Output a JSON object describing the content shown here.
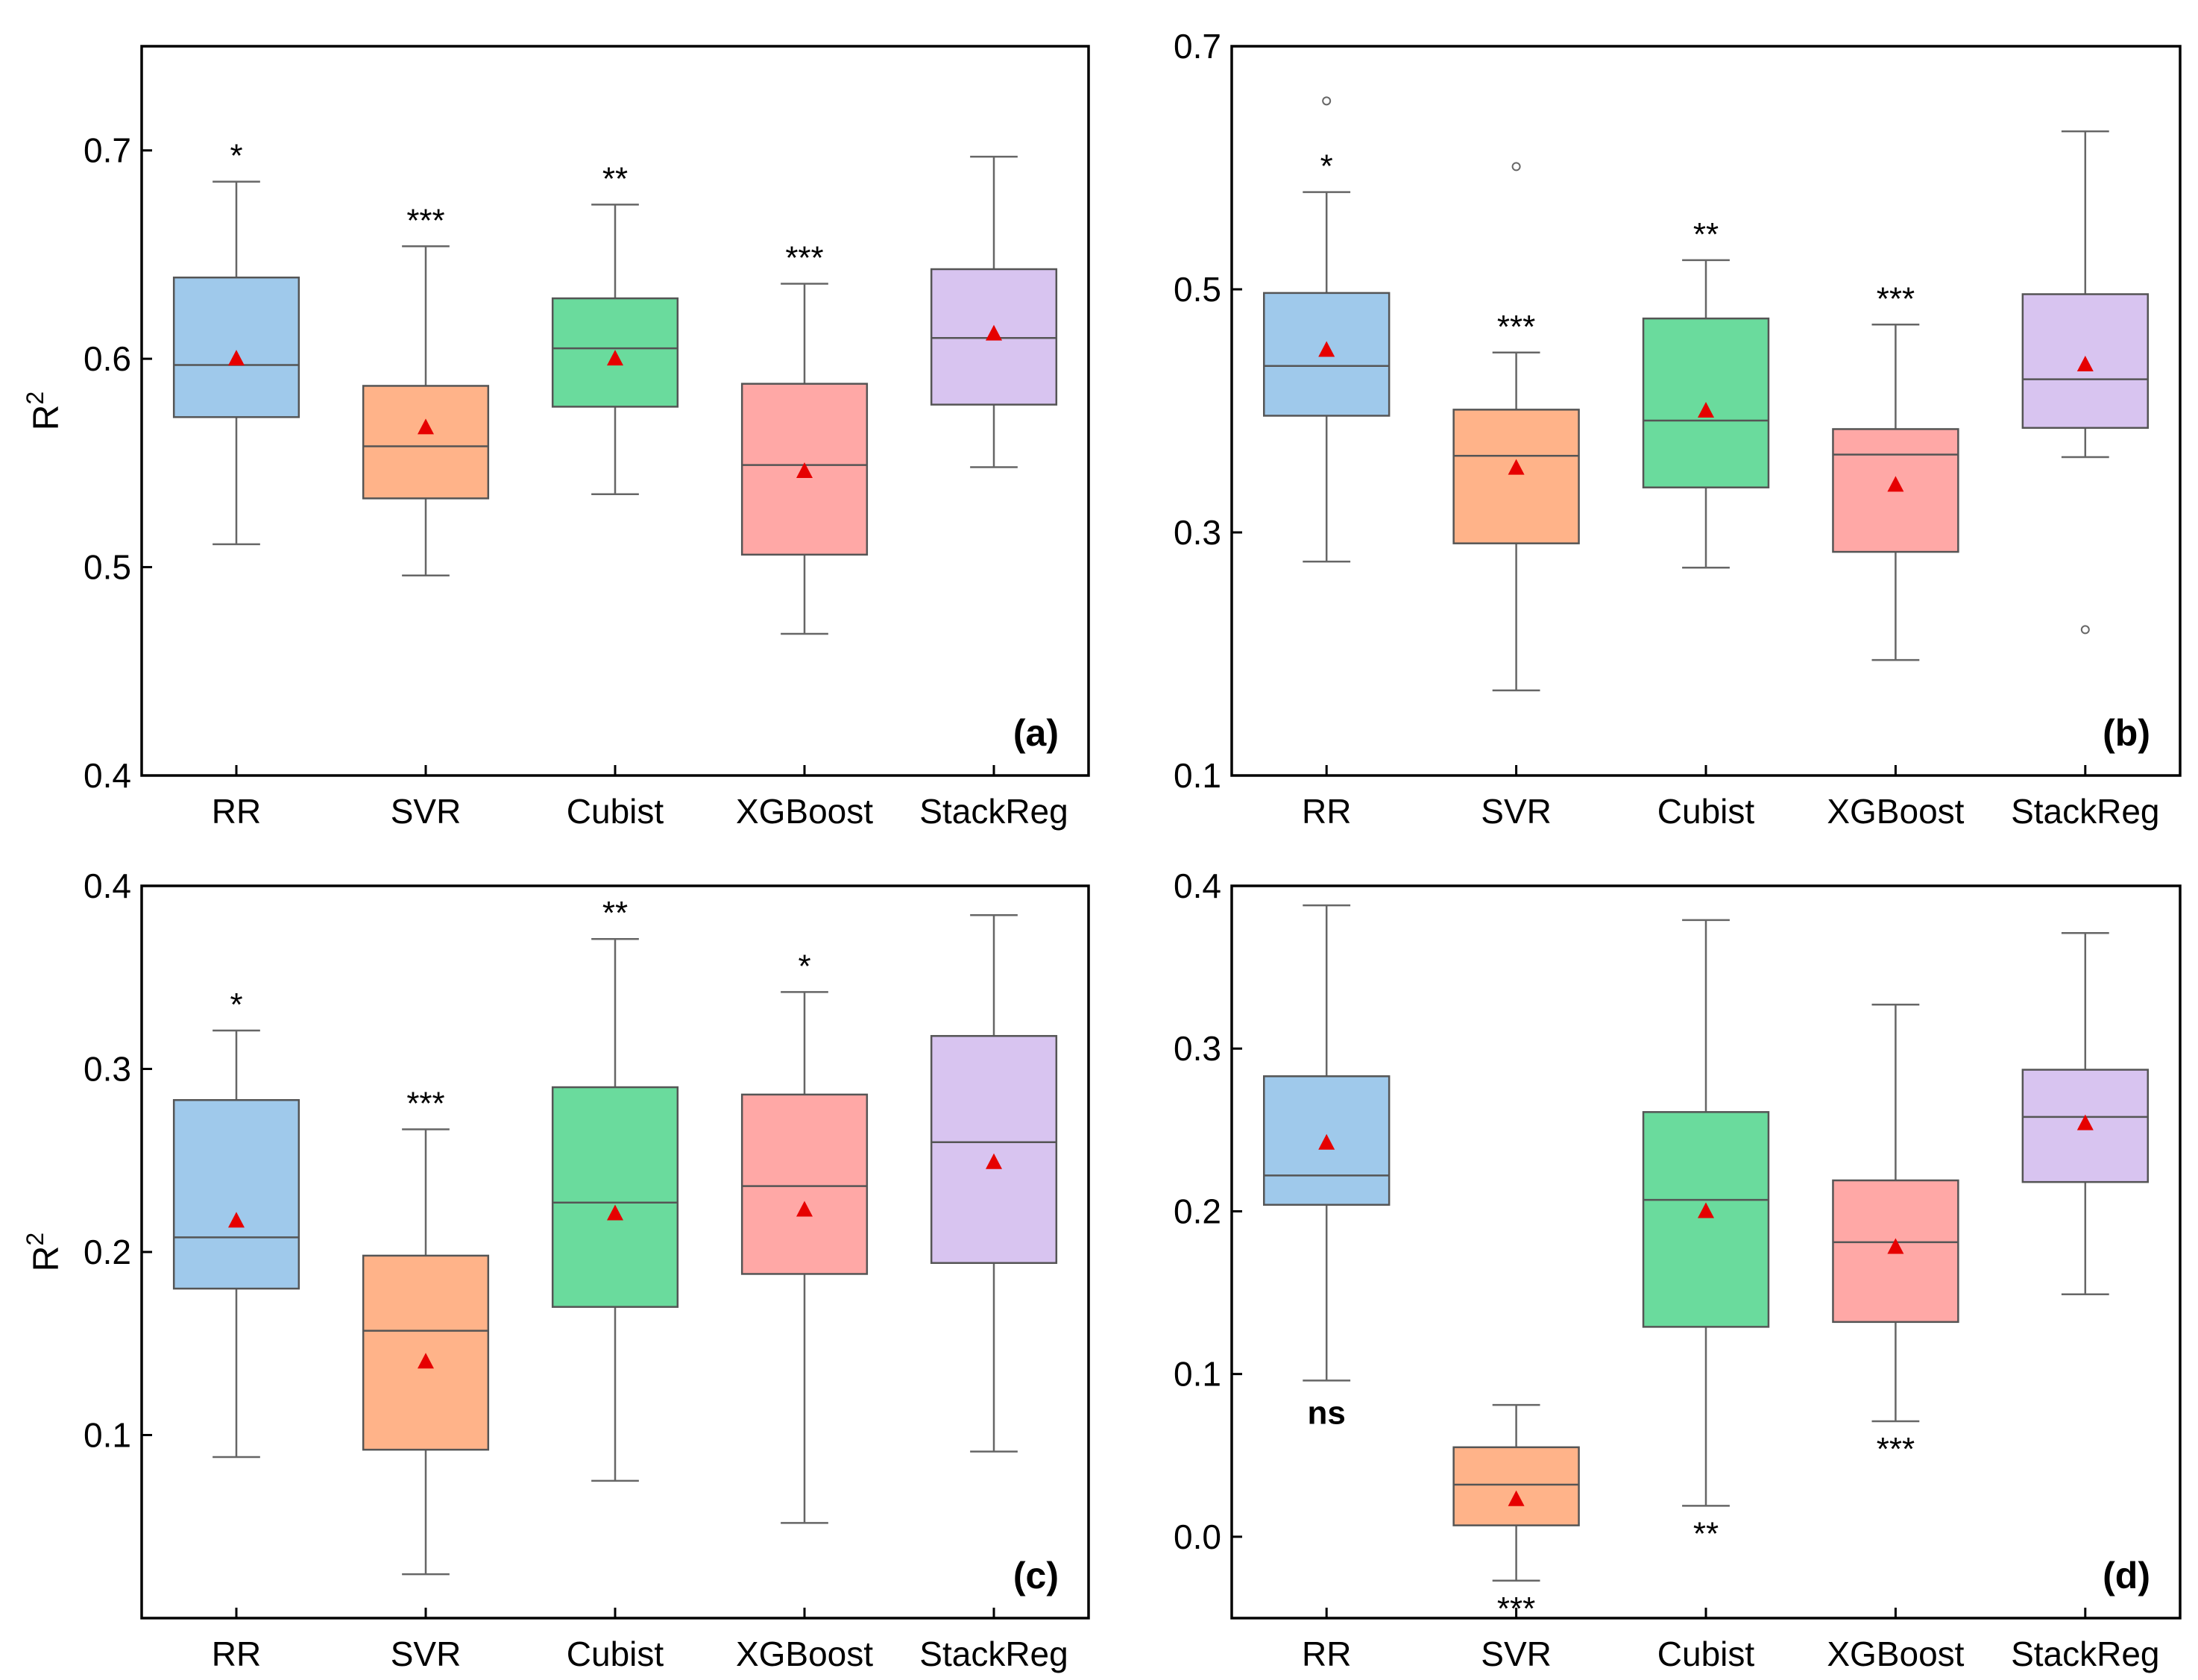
{
  "colors": {
    "RR": "#9fc9eb",
    "SVR": "#ffb389",
    "Cubist": "#6adb9d",
    "XGBoost": "#ffa8a6",
    "StackReg": "#d8c4f0",
    "mean_marker": "#e60000",
    "line": "#666666",
    "axis": "#000000"
  },
  "chart_data": [
    {
      "id": "a",
      "type": "box",
      "panel_label": "(a)",
      "ylabel": "R",
      "ylabel_sup": "2",
      "categories": [
        "RR",
        "SVR",
        "Cubist",
        "XGBoost",
        "StackReg"
      ],
      "ylim": [
        0.4,
        0.75
      ],
      "yticks": [
        0.4,
        0.5,
        0.6,
        0.7
      ],
      "ytick_labels": [
        "0.4",
        "0.5",
        "0.6",
        "0.7"
      ],
      "boxes": [
        {
          "whislo": 0.511,
          "q1": 0.572,
          "med": 0.597,
          "q3": 0.639,
          "whishi": 0.685,
          "mean": 0.6,
          "fliers": [],
          "sig": "*",
          "sig_pos": "above"
        },
        {
          "whislo": 0.496,
          "q1": 0.533,
          "med": 0.558,
          "q3": 0.587,
          "whishi": 0.654,
          "mean": 0.567,
          "fliers": [],
          "sig": "***",
          "sig_pos": "above"
        },
        {
          "whislo": 0.535,
          "q1": 0.577,
          "med": 0.605,
          "q3": 0.629,
          "whishi": 0.674,
          "mean": 0.6,
          "fliers": [],
          "sig": "**",
          "sig_pos": "above"
        },
        {
          "whislo": 0.468,
          "q1": 0.506,
          "med": 0.549,
          "q3": 0.588,
          "whishi": 0.636,
          "mean": 0.546,
          "fliers": [],
          "sig": "***",
          "sig_pos": "above"
        },
        {
          "whislo": 0.548,
          "q1": 0.578,
          "med": 0.61,
          "q3": 0.643,
          "whishi": 0.697,
          "mean": 0.612,
          "fliers": [],
          "sig": "",
          "sig_pos": "above"
        }
      ]
    },
    {
      "id": "b",
      "type": "box",
      "panel_label": "(b)",
      "ylabel": "",
      "ylabel_sup": "",
      "categories": [
        "RR",
        "SVR",
        "Cubist",
        "XGBoost",
        "StackReg"
      ],
      "ylim": [
        0.1,
        0.7
      ],
      "yticks": [
        0.1,
        0.3,
        0.5,
        0.7
      ],
      "ytick_labels": [
        "0.1",
        "0.3",
        "0.5",
        "0.7"
      ],
      "boxes": [
        {
          "whislo": 0.276,
          "q1": 0.396,
          "med": 0.437,
          "q3": 0.497,
          "whishi": 0.58,
          "mean": 0.45,
          "fliers": [
            0.655
          ],
          "sig": "*",
          "sig_pos": "above"
        },
        {
          "whislo": 0.17,
          "q1": 0.291,
          "med": 0.363,
          "q3": 0.401,
          "whishi": 0.448,
          "mean": 0.353,
          "fliers": [
            0.601
          ],
          "sig": "***",
          "sig_pos": "above"
        },
        {
          "whislo": 0.271,
          "q1": 0.337,
          "med": 0.392,
          "q3": 0.476,
          "whishi": 0.524,
          "mean": 0.4,
          "fliers": [],
          "sig": "**",
          "sig_pos": "above"
        },
        {
          "whislo": 0.195,
          "q1": 0.284,
          "med": 0.364,
          "q3": 0.385,
          "whishi": 0.471,
          "mean": 0.339,
          "fliers": [],
          "sig": "***",
          "sig_pos": "above"
        },
        {
          "whislo": 0.362,
          "q1": 0.386,
          "med": 0.426,
          "q3": 0.496,
          "whishi": 0.63,
          "mean": 0.438,
          "fliers": [
            0.22
          ],
          "sig": "",
          "sig_pos": "above"
        }
      ]
    },
    {
      "id": "c",
      "type": "box",
      "panel_label": "(c)",
      "ylabel": "R",
      "ylabel_sup": "2",
      "categories": [
        "RR",
        "SVR",
        "Cubist",
        "XGBoost",
        "StackReg"
      ],
      "ylim": [
        0.0,
        0.4
      ],
      "yticks": [
        0.1,
        0.2,
        0.3,
        0.4
      ],
      "ytick_labels": [
        "0.1",
        "0.2",
        "0.3",
        "0.4"
      ],
      "boxes": [
        {
          "whislo": 0.088,
          "q1": 0.18,
          "med": 0.208,
          "q3": 0.283,
          "whishi": 0.321,
          "mean": 0.217,
          "fliers": [],
          "sig": "*",
          "sig_pos": "above"
        },
        {
          "whislo": 0.024,
          "q1": 0.092,
          "med": 0.157,
          "q3": 0.198,
          "whishi": 0.267,
          "mean": 0.14,
          "fliers": [],
          "sig": "***",
          "sig_pos": "above"
        },
        {
          "whislo": 0.075,
          "q1": 0.17,
          "med": 0.227,
          "q3": 0.29,
          "whishi": 0.371,
          "mean": 0.221,
          "fliers": [],
          "sig": "**",
          "sig_pos": "above"
        },
        {
          "whislo": 0.052,
          "q1": 0.188,
          "med": 0.236,
          "q3": 0.286,
          "whishi": 0.342,
          "mean": 0.223,
          "fliers": [],
          "sig": "*",
          "sig_pos": "above"
        },
        {
          "whislo": 0.091,
          "q1": 0.194,
          "med": 0.26,
          "q3": 0.318,
          "whishi": 0.384,
          "mean": 0.249,
          "fliers": [],
          "sig": "",
          "sig_pos": "above"
        }
      ]
    },
    {
      "id": "d",
      "type": "box",
      "panel_label": "(d)",
      "ylabel": "",
      "ylabel_sup": "",
      "categories": [
        "RR",
        "SVR",
        "Cubist",
        "XGBoost",
        "StackReg"
      ],
      "ylim": [
        -0.05,
        0.4
      ],
      "yticks": [
        0.0,
        0.1,
        0.2,
        0.3,
        0.4
      ],
      "ytick_labels": [
        "0.0",
        "0.1",
        "0.2",
        "0.3",
        "0.4"
      ],
      "boxes": [
        {
          "whislo": 0.096,
          "q1": 0.204,
          "med": 0.222,
          "q3": 0.283,
          "whishi": 0.388,
          "mean": 0.242,
          "fliers": [],
          "sig": "ns",
          "sig_pos": "below"
        },
        {
          "whislo": -0.027,
          "q1": 0.007,
          "med": 0.032,
          "q3": 0.055,
          "whishi": 0.081,
          "mean": 0.023,
          "fliers": [],
          "sig": "***",
          "sig_pos": "below"
        },
        {
          "whislo": 0.019,
          "q1": 0.129,
          "med": 0.207,
          "q3": 0.261,
          "whishi": 0.379,
          "mean": 0.2,
          "fliers": [],
          "sig": "**",
          "sig_pos": "below"
        },
        {
          "whislo": 0.071,
          "q1": 0.132,
          "med": 0.181,
          "q3": 0.219,
          "whishi": 0.327,
          "mean": 0.178,
          "fliers": [],
          "sig": "***",
          "sig_pos": "below"
        },
        {
          "whislo": 0.149,
          "q1": 0.218,
          "med": 0.258,
          "q3": 0.287,
          "whishi": 0.371,
          "mean": 0.254,
          "fliers": [],
          "sig": "",
          "sig_pos": "below"
        }
      ]
    }
  ]
}
